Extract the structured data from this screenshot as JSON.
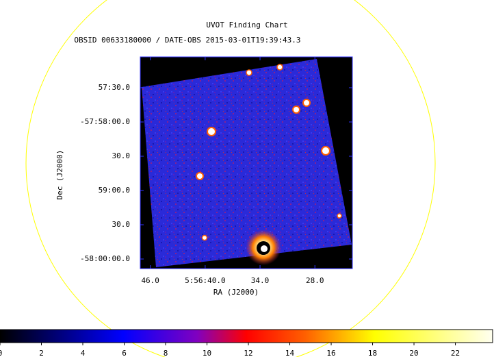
{
  "chart_data": {
    "type": "image",
    "title": "UVOT Finding Chart",
    "subtitle": "OBSID 00633180000 / DATE-OBS 2015-03-01T19:39:43.3",
    "xlabel": "RA (J2000)",
    "ylabel": "Dec (J2000)",
    "xlim": [
      47.1,
      23.9
    ],
    "xticks": [
      {
        "value": 46,
        "label": "46.0"
      },
      {
        "value": 40,
        "label": "5:56:40.0"
      },
      {
        "value": 34,
        "label": "34.0"
      },
      {
        "value": 28,
        "label": "28.0"
      }
    ],
    "ylim": [
      -58.002333,
      -57.950833
    ],
    "yticks": [
      {
        "value": -57.958333,
        "label": "57:30.0"
      },
      {
        "value": -57.966667,
        "label": "-57:58:00.0"
      },
      {
        "value": -57.975,
        "label": "30.0"
      },
      {
        "value": -57.983333,
        "label": "59:00.0"
      },
      {
        "value": -57.991667,
        "label": "30.0"
      },
      {
        "value": -58.0,
        "label": "-58:00:00.0"
      }
    ],
    "colorbar": {
      "lim": [
        0,
        23.8
      ],
      "ticks": [
        0,
        2,
        4,
        6,
        8,
        10,
        12,
        14,
        16,
        18,
        20,
        22
      ]
    }
  }
}
